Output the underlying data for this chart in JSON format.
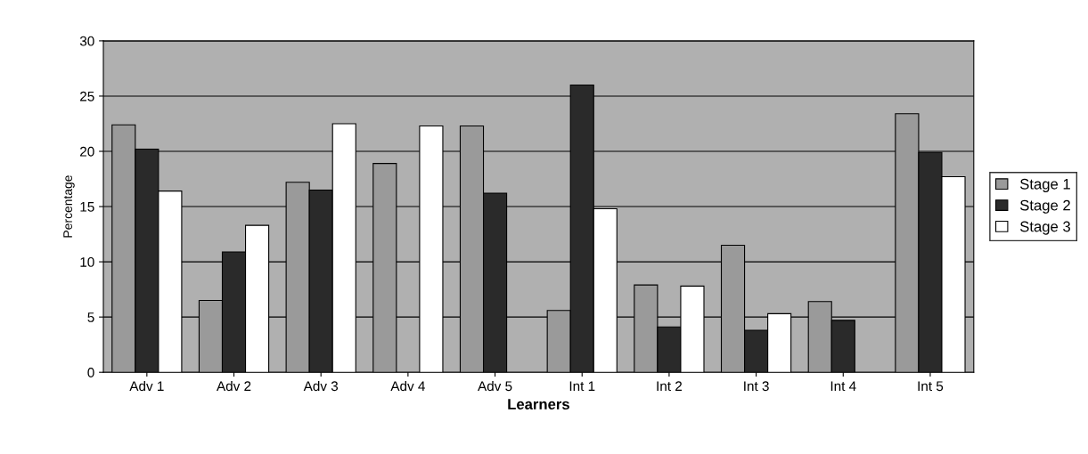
{
  "chart_data": {
    "type": "bar",
    "xlabel": "Learners",
    "ylabel": "Percentage",
    "categories": [
      "Adv 1",
      "Adv 2",
      "Adv 3",
      "Adv 4",
      "Adv 5",
      "Int 1",
      "Int 2",
      "Int 3",
      "Int 4",
      "Int 5"
    ],
    "series": [
      {
        "name": "Stage 1",
        "color": "#9a9a9a",
        "values": [
          22.4,
          6.5,
          17.2,
          18.9,
          22.3,
          5.6,
          7.9,
          11.5,
          6.4,
          23.4
        ]
      },
      {
        "name": "Stage 2",
        "color": "#2a2a2a",
        "values": [
          20.2,
          10.9,
          16.5,
          null,
          16.2,
          26,
          4.1,
          3.8,
          4.7,
          19.9
        ]
      },
      {
        "name": "Stage 3",
        "color": "#ffffff",
        "values": [
          16.4,
          13.3,
          22.5,
          22.3,
          null,
          14.8,
          7.8,
          5.3,
          null,
          17.7
        ]
      }
    ],
    "ylim": [
      0,
      30
    ],
    "yticks": [
      0,
      5,
      10,
      15,
      20,
      25,
      30
    ],
    "grid": "y",
    "legend": "right"
  }
}
